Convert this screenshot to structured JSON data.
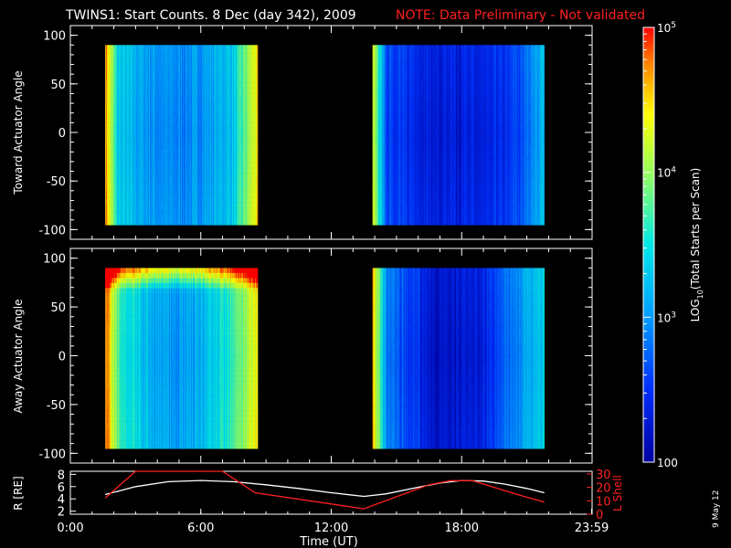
{
  "title": {
    "main": "TWINS1: Start Counts.  8 Dec (day 342), 2009",
    "note": "NOTE: Data Preliminary - Not validated",
    "note_color": "#ff2020"
  },
  "side_stamp": "9 May 12",
  "chart_data": [
    {
      "type": "heatmap",
      "ylabel": "Toward Actuator Angle",
      "x_range_hours": [
        0,
        24
      ],
      "ylim": [
        -110,
        110
      ],
      "y_ticks": [
        "100",
        "50",
        "0",
        "-50",
        "-100"
      ],
      "y_tick_values": [
        100,
        50,
        0,
        -50,
        -100
      ],
      "angle_coverage": [
        -90,
        90
      ],
      "data_intervals_hours": [
        [
          1.6,
          8.6
        ],
        [
          13.9,
          21.8
        ]
      ],
      "description_per_interval": [
        {
          "edge_start_log10": 4.7,
          "core_log10": 3.3,
          "min_log10": 2.9,
          "edge_end_log10": 4.4
        },
        {
          "edge_start_log10": 4.3,
          "core_log10": 2.6,
          "min_log10": 2.3,
          "edge_end_log10": 3.2
        }
      ]
    },
    {
      "type": "heatmap",
      "ylabel": "Away Actuator Angle",
      "x_range_hours": [
        0,
        24
      ],
      "ylim": [
        -110,
        110
      ],
      "y_ticks": [
        "100",
        "50",
        "0",
        "-50",
        "-100"
      ],
      "y_tick_values": [
        100,
        50,
        0,
        -50,
        -100
      ],
      "angle_coverage": [
        -90,
        90
      ],
      "data_intervals_hours": [
        [
          1.6,
          8.6
        ],
        [
          13.9,
          21.8
        ]
      ],
      "description_per_interval": [
        {
          "edge_start_log10": 4.8,
          "core_log10": 3.7,
          "min_log10": 3.0,
          "edge_end_log10": 4.3
        },
        {
          "edge_start_log10": 4.5,
          "core_log10": 2.9,
          "min_log10": 2.2,
          "edge_end_log10": 3.4
        }
      ]
    },
    {
      "type": "line",
      "xlabel": "Time (UT)",
      "x_ticks": [
        "0:00",
        "6:00",
        "12:00",
        "18:00",
        "23:59"
      ],
      "x_tick_values": [
        0,
        6,
        12,
        18,
        23.98
      ],
      "left_axis": {
        "label": "R [RE]",
        "ticks": [
          "8",
          "6",
          "4",
          "2"
        ],
        "tick_values": [
          8,
          6,
          4,
          2
        ],
        "ylim": [
          1.5,
          8.5
        ]
      },
      "right_axis": {
        "label": "L Shell",
        "ticks": [
          "30",
          "20",
          "10",
          "0"
        ],
        "tick_values": [
          30,
          20,
          10,
          0
        ],
        "ylim": [
          0,
          32
        ],
        "color": "#ff2020"
      },
      "series": [
        {
          "axis": "left",
          "color": "#ffffff",
          "x": [
            1.6,
            3.0,
            4.5,
            6.0,
            7.5,
            9.0,
            10.5,
            12.0,
            13.5,
            14.5,
            16.0,
            17.0,
            18.0,
            19.0,
            20.0,
            21.0,
            21.8
          ],
          "y": [
            4.7,
            6.0,
            6.8,
            7.0,
            6.8,
            6.3,
            5.7,
            5.0,
            4.4,
            4.8,
            5.9,
            6.6,
            7.0,
            6.9,
            6.4,
            5.7,
            5.0
          ]
        },
        {
          "axis": "right",
          "color": "#ff2020",
          "x": [
            1.6,
            3.0,
            7.0,
            8.5,
            13.5,
            15.0,
            16.5,
            17.5,
            18.5,
            19.5,
            20.5,
            21.8
          ],
          "y": [
            12,
            33,
            33,
            16,
            4,
            13,
            22,
            25,
            25,
            20,
            15,
            9
          ]
        }
      ]
    }
  ],
  "colorbar": {
    "label": "LOG10(Total Starts per Scan)",
    "label_main": "LOG",
    "label_sub": "10",
    "label_rest": "(Total Starts per Scan)",
    "range_log10": [
      2,
      5
    ],
    "ticks": [
      {
        "base": "10",
        "exp": "5",
        "log10": 5
      },
      {
        "base": "10",
        "exp": "4",
        "log10": 4
      },
      {
        "base": "10",
        "exp": "3",
        "log10": 3
      },
      {
        "base": "100",
        "exp": "",
        "log10": 2
      }
    ]
  },
  "colors": {
    "background": "#000000",
    "foreground": "#ffffff",
    "no_data": "#000000"
  }
}
